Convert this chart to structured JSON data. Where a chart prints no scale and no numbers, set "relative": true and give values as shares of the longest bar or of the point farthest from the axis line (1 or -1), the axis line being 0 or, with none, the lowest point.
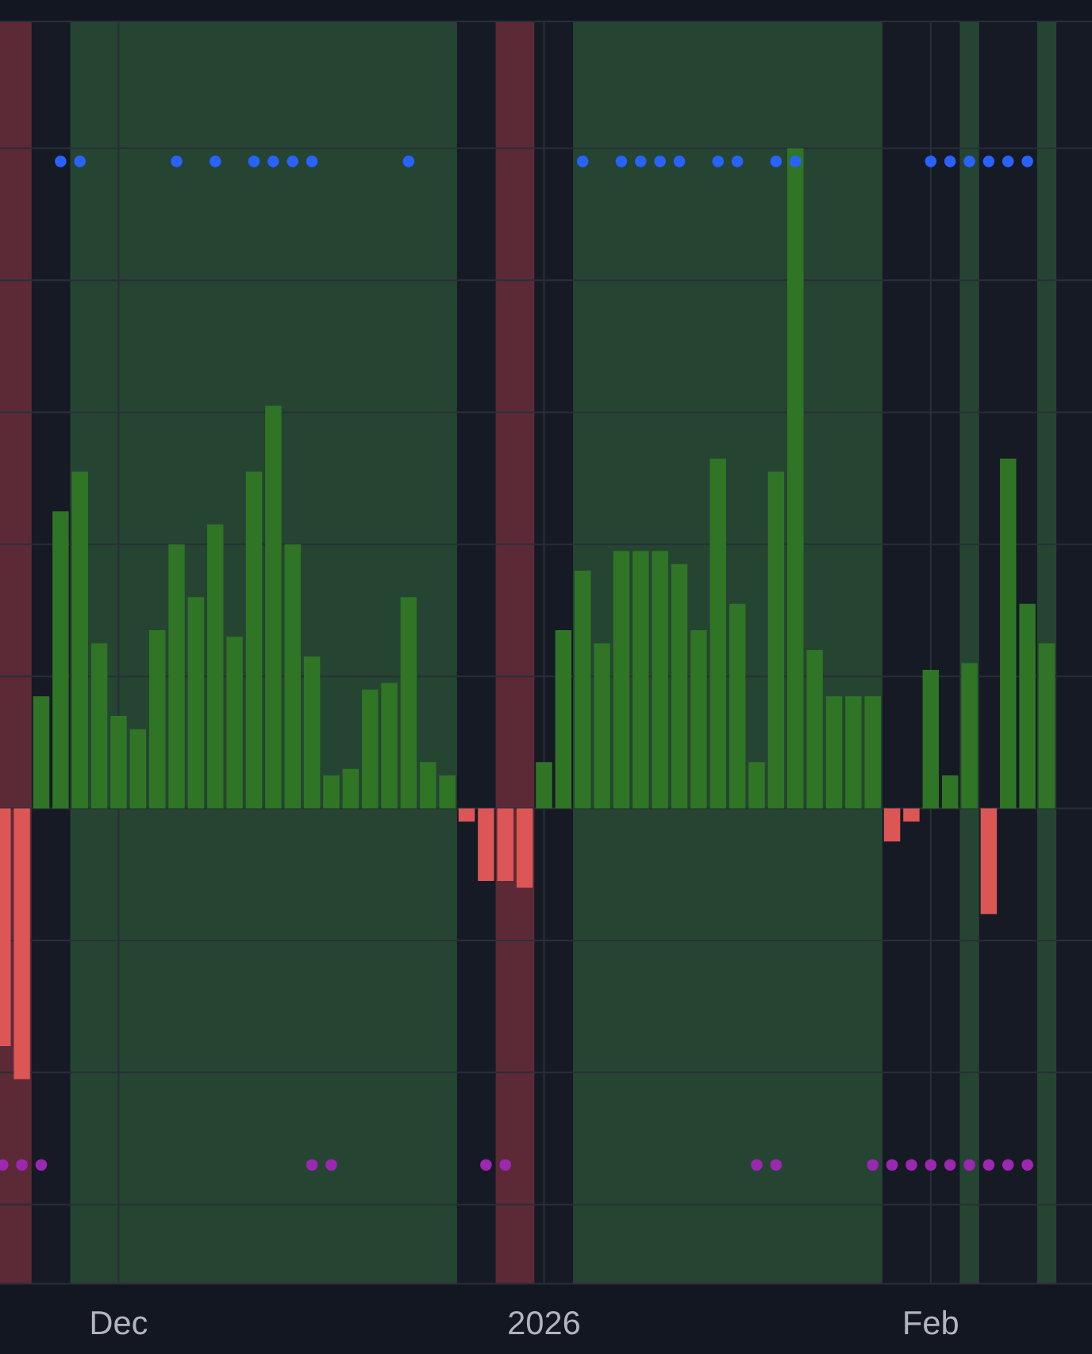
{
  "chart_data": {
    "type": "bar",
    "relative": true,
    "categories": [
      null,
      null,
      null,
      null,
      null,
      null,
      "Dec",
      null,
      null,
      null,
      null,
      null,
      null,
      null,
      null,
      null,
      null,
      null,
      null,
      null,
      null,
      null,
      null,
      null,
      null,
      null,
      null,
      null,
      "2026",
      null,
      null,
      null,
      null,
      null,
      null,
      null,
      null,
      null,
      null,
      null,
      null,
      null,
      null,
      null,
      null,
      null,
      null,
      null,
      "Feb",
      null,
      null,
      null,
      null,
      null,
      null
    ],
    "series": [
      {
        "colors": [
          "#dc5656",
          "#dc5656",
          "#2f7525",
          "#2f7525",
          "#2f7525",
          "#2f7525",
          "#2f7525",
          "#2f7525",
          "#2f7525",
          "#2f7525",
          "#2f7525",
          "#2f7525",
          "#2f7525",
          "#2f7525",
          "#2f7525",
          "#2f7525",
          "#2f7525",
          "#2f7525",
          "#2f7525",
          "#2f7525",
          "#2f7525",
          "#2f7525",
          "#2f7525",
          "#2f7525",
          "#dc5656",
          "#dc5656",
          "#dc5656",
          "#dc5656",
          "#2f7525",
          "#2f7525",
          "#2f7525",
          "#2f7525",
          "#2f7525",
          "#2f7525",
          "#2f7525",
          "#2f7525",
          "#2f7525",
          "#2f7525",
          "#2f7525",
          "#2f7525",
          "#2f7525",
          "#2f7525",
          "#2f7525",
          "#2f7525",
          "#2f7525",
          "#2f7525",
          "#dc5656",
          "#dc5656",
          "#2f7525",
          "#2f7525",
          "#2f7525",
          "#dc5656",
          "#2f7525",
          "#2f7525",
          "#2f7525"
        ],
        "values": [
          -0.36,
          -0.41,
          0.17,
          0.45,
          0.51,
          0.25,
          0.14,
          0.12,
          0.27,
          0.4,
          0.32,
          0.43,
          0.26,
          0.51,
          0.61,
          0.4,
          0.23,
          0.05,
          0.06,
          0.18,
          0.19,
          0.32,
          0.07,
          0.05,
          -0.02,
          -0.11,
          -0.11,
          -0.12,
          0.07,
          0.27,
          0.36,
          0.25,
          0.39,
          0.39,
          0.39,
          0.37,
          0.27,
          0.53,
          0.31,
          0.07,
          0.51,
          1.0,
          0.24,
          0.17,
          0.17,
          0.17,
          -0.05,
          -0.02,
          0.21,
          0.05,
          0.22,
          -0.16,
          0.53,
          0.31,
          0.25
        ]
      },
      {
        "type": "scatter",
        "color": "#2962ff",
        "values": [
          null,
          null,
          null,
          0.98,
          0.98,
          null,
          null,
          null,
          null,
          0.98,
          null,
          0.98,
          null,
          0.98,
          0.98,
          0.98,
          0.98,
          null,
          null,
          null,
          null,
          0.98,
          null,
          null,
          null,
          null,
          null,
          null,
          null,
          null,
          0.98,
          null,
          0.98,
          0.98,
          0.98,
          0.98,
          null,
          0.98,
          0.98,
          null,
          0.98,
          0.98,
          null,
          null,
          null,
          null,
          null,
          null,
          0.98,
          0.98,
          0.98,
          0.98,
          0.98,
          0.98,
          null
        ]
      },
      {
        "type": "scatter",
        "color": "#9c27b0",
        "values": [
          -0.54,
          -0.54,
          -0.54,
          null,
          null,
          null,
          null,
          null,
          null,
          null,
          null,
          null,
          null,
          null,
          null,
          null,
          -0.54,
          -0.54,
          null,
          null,
          null,
          null,
          null,
          null,
          null,
          -0.54,
          -0.54,
          null,
          null,
          null,
          null,
          null,
          null,
          null,
          null,
          null,
          null,
          null,
          null,
          -0.54,
          -0.54,
          null,
          null,
          null,
          null,
          -0.54,
          -0.54,
          -0.54,
          -0.54,
          -0.54,
          -0.54,
          -0.54,
          -0.54,
          -0.54,
          null
        ]
      }
    ],
    "marker": "circle",
    "grid": true,
    "tick_labels": "x"
  }
}
